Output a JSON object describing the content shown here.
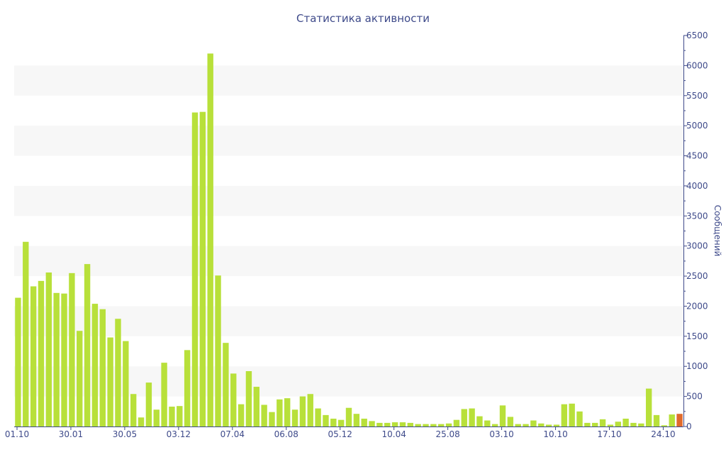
{
  "chart_data": {
    "type": "bar",
    "title": "Статистика активности",
    "ylabel": "Сообщений",
    "xlabel": "",
    "ylim": [
      0,
      6500
    ],
    "y_axis_side": "right",
    "y_ticks": [
      0,
      500,
      1000,
      1500,
      2000,
      2500,
      3000,
      3500,
      4000,
      4500,
      5000,
      5500,
      6000,
      6500
    ],
    "x_ticks": [
      {
        "label": "01.10",
        "index": 0
      },
      {
        "label": "30.01",
        "index": 7
      },
      {
        "label": "30.05",
        "index": 14
      },
      {
        "label": "03.12",
        "index": 21
      },
      {
        "label": "07.04",
        "index": 28
      },
      {
        "label": "06.08",
        "index": 35
      },
      {
        "label": "05.12",
        "index": 42
      },
      {
        "label": "10.04",
        "index": 49
      },
      {
        "label": "25.08",
        "index": 56
      },
      {
        "label": "03.10",
        "index": 63
      },
      {
        "label": "10.10",
        "index": 70
      },
      {
        "label": "17.10",
        "index": 77
      },
      {
        "label": "24.10",
        "index": 84
      }
    ],
    "values": [
      2140,
      3070,
      2330,
      2420,
      2560,
      2220,
      2210,
      2550,
      1590,
      2700,
      2040,
      1950,
      1480,
      1790,
      1420,
      540,
      150,
      730,
      280,
      1060,
      330,
      340,
      1270,
      5220,
      5230,
      6200,
      2510,
      1390,
      880,
      370,
      920,
      660,
      360,
      240,
      450,
      470,
      280,
      500,
      540,
      300,
      190,
      130,
      110,
      310,
      210,
      130,
      90,
      60,
      60,
      70,
      70,
      60,
      40,
      40,
      40,
      40,
      50,
      110,
      290,
      300,
      170,
      100,
      40,
      350,
      160,
      40,
      40,
      100,
      50,
      30,
      30,
      370,
      380,
      250,
      60,
      60,
      120,
      30,
      80,
      130,
      60,
      50,
      630,
      190,
      20,
      200,
      210
    ],
    "highlight_index": 86,
    "colors": {
      "bar": "#b8e03a",
      "highlight": "#e06a2c",
      "axis": "#3e4a8a",
      "band": "#f7f7f7"
    },
    "grid": "alternating horizontal bands",
    "legend": "none"
  }
}
